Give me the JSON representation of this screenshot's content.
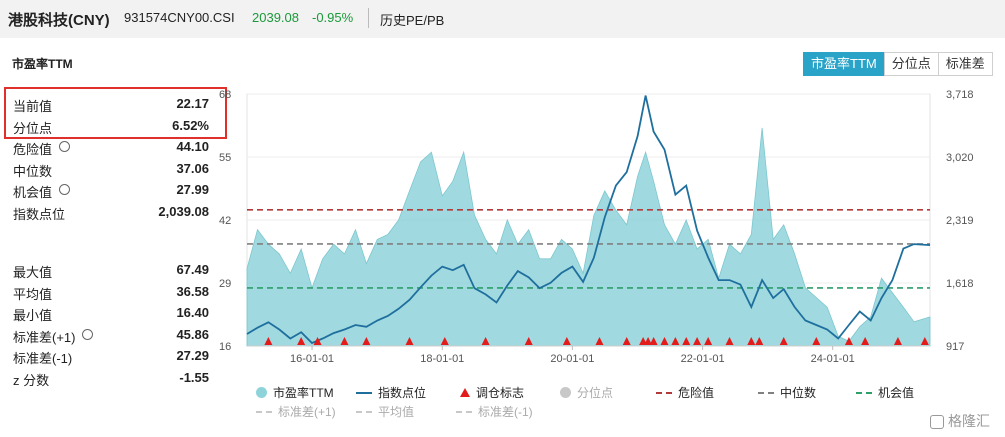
{
  "header": {
    "title": "港股科技(CNY)",
    "code": "931574CNY00.CSI",
    "price": "2039.08",
    "change": "-0.95%",
    "history_link": "历史PE/PB"
  },
  "section_label": "市盈率TTM",
  "tabs": [
    {
      "label": "市盈率TTM",
      "active": true
    },
    {
      "label": "分位点",
      "active": false
    },
    {
      "label": "标准差",
      "active": false
    }
  ],
  "stats_top": [
    {
      "label": "当前值",
      "value": "22.17",
      "gear": false
    },
    {
      "label": "分位点",
      "value": "6.52%",
      "gear": false
    },
    {
      "label": "危险值",
      "value": "44.10",
      "gear": true
    },
    {
      "label": "中位数",
      "value": "37.06",
      "gear": false
    },
    {
      "label": "机会值",
      "value": "27.99",
      "gear": true
    },
    {
      "label": "指数点位",
      "value": "2,039.08",
      "gear": false
    }
  ],
  "stats_bottom": [
    {
      "label": "最大值",
      "value": "67.49",
      "gear": false
    },
    {
      "label": "平均值",
      "value": "36.58",
      "gear": false
    },
    {
      "label": "最小值",
      "value": "16.40",
      "gear": false
    },
    {
      "label": "标准差(+1)",
      "value": "45.86",
      "gear": true
    },
    {
      "label": "标准差(-1)",
      "value": "27.29",
      "gear": false
    },
    {
      "label": "z 分数",
      "value": "-1.55",
      "gear": false
    }
  ],
  "colors": {
    "pe_area": "#8fd3da",
    "index_line": "#1f6f9e",
    "marker": "#e31b1b",
    "danger": "#b23a3a",
    "median": "#808080",
    "chance": "#2e9e6a",
    "tab_active": "#2aa3c9"
  },
  "chart_data": {
    "type": "area",
    "x_tick_labels": [
      "16-01-01",
      "18-01-01",
      "20-01-01",
      "22-01-01",
      "24-01-01"
    ],
    "x_range": [
      "2015-01-01",
      "2025-06-30"
    ],
    "y_left_ticks": [
      "16",
      "29",
      "42",
      "55",
      "68"
    ],
    "y_left_range": [
      16,
      68
    ],
    "y_right_ticks": [
      "917",
      "1,618",
      "2,319",
      "3,020",
      "3,718"
    ],
    "y_right_range": [
      917,
      3718
    ],
    "reference_lines": [
      {
        "name": "危险值",
        "value": 44.1,
        "color": "#b23a3a"
      },
      {
        "name": "中位数",
        "value": 37.06,
        "color": "#808080"
      },
      {
        "name": "机会值",
        "value": 27.99,
        "color": "#2e9e6a"
      }
    ],
    "series": [
      {
        "name": "市盈率TTM",
        "axis": "left",
        "kind": "area",
        "x": [
          "2015-01-01",
          "2015-03-01",
          "2015-05-01",
          "2015-07-01",
          "2015-09-01",
          "2015-11-01",
          "2016-01-01",
          "2016-03-01",
          "2016-05-01",
          "2016-07-01",
          "2016-09-01",
          "2016-11-01",
          "2017-01-01",
          "2017-03-01",
          "2017-05-01",
          "2017-07-01",
          "2017-09-01",
          "2017-11-01",
          "2018-01-01",
          "2018-03-01",
          "2018-05-01",
          "2018-07-01",
          "2018-09-01",
          "2018-11-01",
          "2019-01-01",
          "2019-03-01",
          "2019-05-01",
          "2019-07-01",
          "2019-09-01",
          "2019-11-01",
          "2020-01-01",
          "2020-03-01",
          "2020-05-01",
          "2020-07-01",
          "2020-09-01",
          "2020-11-01",
          "2021-01-01",
          "2021-02-15",
          "2021-04-01",
          "2021-06-01",
          "2021-08-01",
          "2021-10-01",
          "2021-12-01",
          "2022-02-01",
          "2022-04-01",
          "2022-06-01",
          "2022-08-01",
          "2022-10-01",
          "2022-12-01",
          "2023-02-01",
          "2023-04-01",
          "2023-06-01",
          "2023-08-01",
          "2023-10-01",
          "2023-12-01",
          "2024-02-01",
          "2024-04-01",
          "2024-06-01",
          "2024-08-01",
          "2024-10-01",
          "2024-12-01",
          "2025-02-01",
          "2025-04-01",
          "2025-06-30"
        ],
        "y": [
          32,
          40,
          37,
          35,
          31,
          36,
          28,
          34,
          37,
          35,
          40,
          33,
          38,
          39,
          42,
          48,
          54,
          56,
          47,
          50,
          56,
          43,
          38,
          35,
          42,
          37,
          40,
          34,
          34,
          38,
          36,
          31,
          43,
          48,
          44,
          41,
          51,
          56,
          50,
          41,
          37,
          42,
          36,
          38,
          30,
          37,
          35,
          39,
          61,
          38,
          41,
          35,
          28,
          26,
          24,
          18,
          17,
          20,
          22,
          30,
          27,
          24,
          21,
          22
        ]
      },
      {
        "name": "指数点位",
        "axis": "right",
        "kind": "line",
        "x": [
          "2015-01-01",
          "2015-03-01",
          "2015-05-01",
          "2015-07-01",
          "2015-09-01",
          "2015-11-01",
          "2016-01-01",
          "2016-03-01",
          "2016-05-01",
          "2016-07-01",
          "2016-09-01",
          "2016-11-01",
          "2017-01-01",
          "2017-03-01",
          "2017-05-01",
          "2017-07-01",
          "2017-09-01",
          "2017-11-01",
          "2018-01-01",
          "2018-03-01",
          "2018-05-01",
          "2018-07-01",
          "2018-09-01",
          "2018-11-01",
          "2019-01-01",
          "2019-03-01",
          "2019-05-01",
          "2019-07-01",
          "2019-09-01",
          "2019-11-01",
          "2020-01-01",
          "2020-03-01",
          "2020-05-01",
          "2020-07-01",
          "2020-09-01",
          "2020-11-01",
          "2021-01-01",
          "2021-02-15",
          "2021-04-01",
          "2021-06-01",
          "2021-08-01",
          "2021-10-01",
          "2021-12-01",
          "2022-02-01",
          "2022-04-01",
          "2022-06-01",
          "2022-08-01",
          "2022-10-01",
          "2022-12-01",
          "2023-02-01",
          "2023-04-01",
          "2023-06-01",
          "2023-08-01",
          "2023-10-01",
          "2023-12-01",
          "2024-02-01",
          "2024-04-01",
          "2024-06-01",
          "2024-08-01",
          "2024-10-01",
          "2024-12-01",
          "2025-02-01",
          "2025-04-01",
          "2025-06-30"
        ],
        "y": [
          1050,
          1120,
          1180,
          1100,
          1000,
          1070,
          950,
          1000,
          1060,
          1100,
          1150,
          1130,
          1200,
          1250,
          1330,
          1430,
          1570,
          1700,
          1800,
          1760,
          1820,
          1560,
          1490,
          1400,
          1590,
          1750,
          1680,
          1560,
          1620,
          1730,
          1800,
          1630,
          1900,
          2350,
          2700,
          2850,
          3250,
          3700,
          3300,
          3100,
          2600,
          2700,
          2200,
          1900,
          1650,
          1650,
          1600,
          1350,
          1650,
          1450,
          1550,
          1350,
          1200,
          1150,
          1100,
          1000,
          1150,
          1300,
          1200,
          1450,
          1650,
          2000,
          2050,
          2039
        ]
      },
      {
        "name": "调仓标志",
        "axis": "none",
        "kind": "marker",
        "x": [
          "2015-05-01",
          "2015-11-01",
          "2016-02-01",
          "2016-07-01",
          "2016-11-01",
          "2017-07-01",
          "2018-01-15",
          "2018-09-01",
          "2019-05-01",
          "2019-12-01",
          "2020-06-01",
          "2020-11-01",
          "2021-02-01",
          "2021-03-01",
          "2021-04-01",
          "2021-06-01",
          "2021-08-01",
          "2021-10-01",
          "2021-12-01",
          "2022-02-01",
          "2022-06-01",
          "2022-10-01",
          "2022-11-15",
          "2023-04-01",
          "2023-10-01",
          "2024-04-01",
          "2024-07-01",
          "2025-01-01",
          "2025-06-01"
        ]
      }
    ],
    "legend": [
      {
        "label": "市盈率TTM",
        "type": "dot",
        "color": "#8fd3da"
      },
      {
        "label": "指数点位",
        "type": "line",
        "color": "#1f6f9e"
      },
      {
        "label": "调仓标志",
        "type": "triangle",
        "color": "#e31b1b"
      },
      {
        "label": "分位点",
        "type": "dot",
        "color": "#c8c8c8"
      },
      {
        "label": "危险值",
        "type": "dash",
        "color": "#b23a3a"
      },
      {
        "label": "中位数",
        "type": "dash",
        "color": "#808080"
      },
      {
        "label": "机会值",
        "type": "dash",
        "color": "#2e9e6a"
      },
      {
        "label": "标准差(+1)",
        "type": "dash",
        "color": "#c8c8c8"
      },
      {
        "label": "平均值",
        "type": "dash",
        "color": "#c8c8c8"
      },
      {
        "label": "标准差(-1)",
        "type": "dash",
        "color": "#c8c8c8"
      }
    ]
  },
  "watermark": "格隆汇"
}
